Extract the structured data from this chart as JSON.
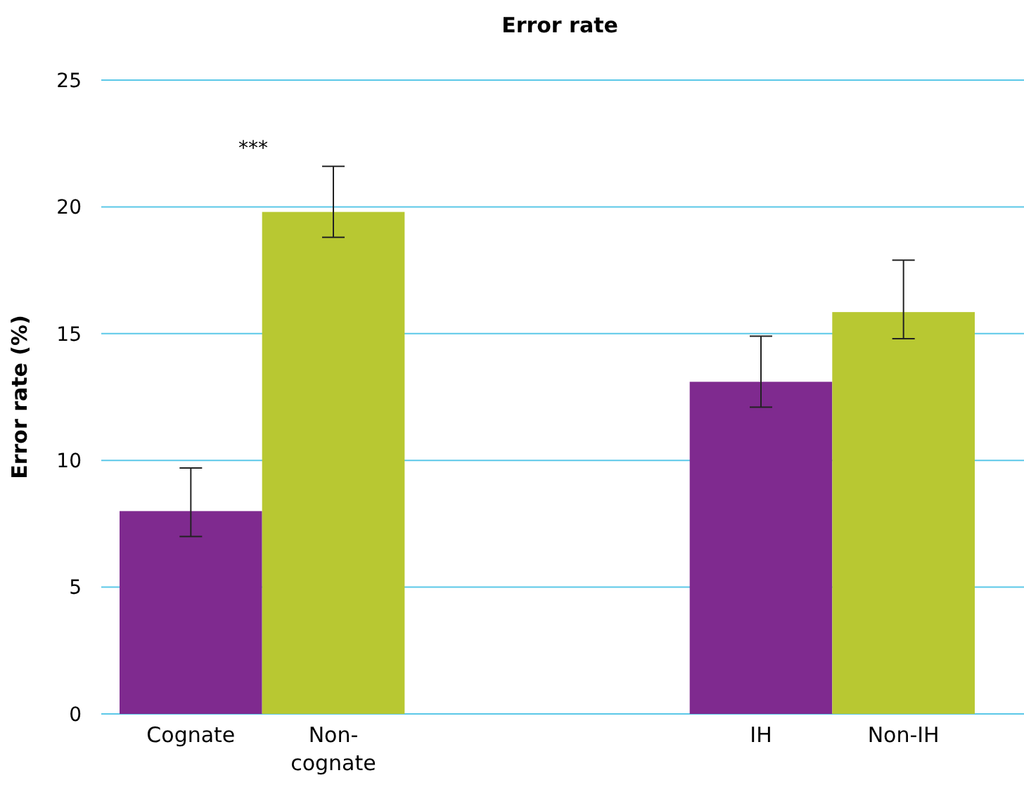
{
  "chart_data": {
    "type": "bar",
    "title": "Error rate",
    "ylabel": "Error rate (%)",
    "categories": [
      "Cognate",
      "Non-cognate",
      null,
      null,
      "IH",
      "Non-IH"
    ],
    "values": [
      8.0,
      19.8,
      null,
      null,
      13.1,
      15.85
    ],
    "colors": [
      "#7f2a8f",
      "#b8c832",
      null,
      null,
      "#7f2a8f",
      "#b8c832"
    ],
    "errors": [
      [
        7.0,
        9.7
      ],
      [
        18.8,
        21.6
      ],
      null,
      null,
      [
        12.1,
        14.9
      ],
      [
        14.8,
        17.9
      ]
    ],
    "ylim": [
      0,
      25
    ],
    "yticks": [
      0,
      5,
      10,
      15,
      20,
      25
    ],
    "grid": "y",
    "annotations": [
      "***"
    ]
  }
}
